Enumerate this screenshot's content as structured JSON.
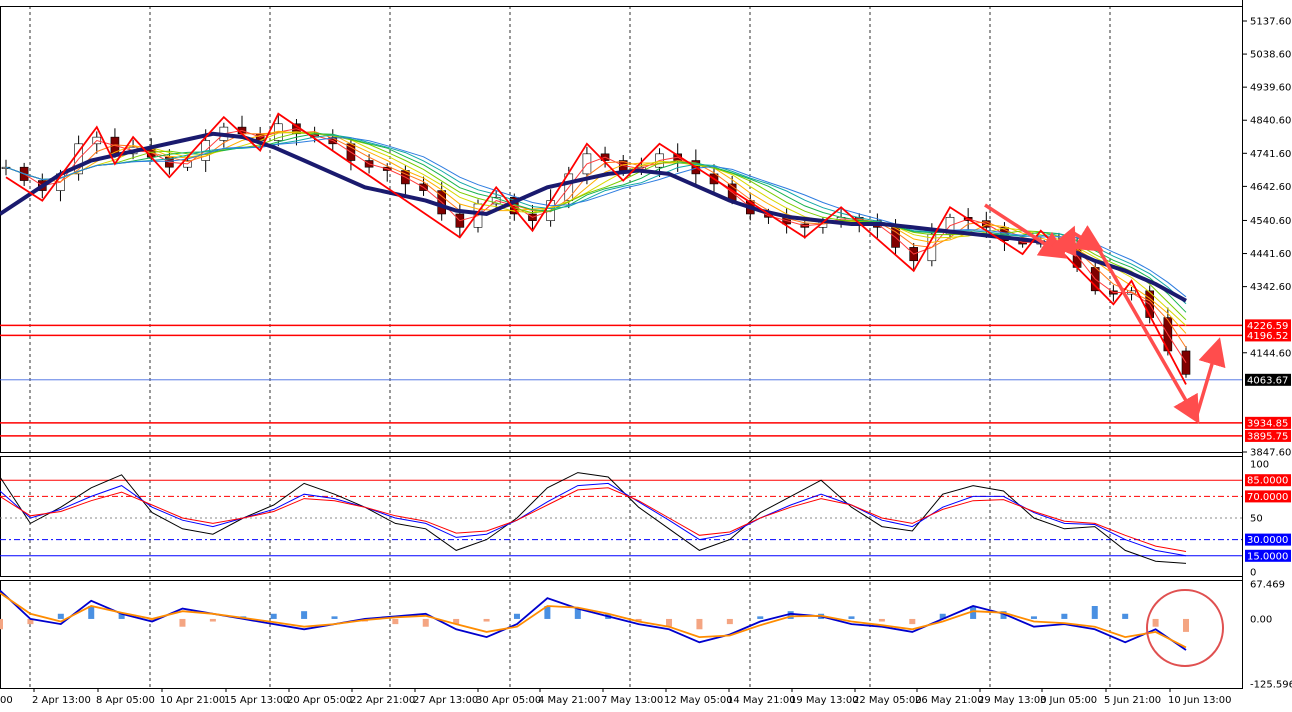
{
  "chart_data": [
    {
      "type": "candlestick",
      "name_hint": "price",
      "price_axis_ticks": [
        "5137.60",
        "5038.60",
        "4939.60",
        "4840.60",
        "4741.60",
        "4642.60",
        "4540.60",
        "4441.60",
        "4342.60",
        "4144.60",
        "3847.60"
      ],
      "ylim": [
        3847.6,
        5137.6
      ],
      "x_tick_labels": [
        "2 Apr 13:00",
        "8 Apr 05:00",
        "10 Apr 21:00",
        "15 Apr 13:00",
        "20 Apr 05:00",
        "22 Apr 21:00",
        "27 Apr 13:00",
        "30 Apr 05:00",
        "4 May 21:00",
        "7 May 13:00",
        "12 May 05:00",
        "14 May 21:00",
        "19 May 13:00",
        "22 May 05:00",
        "26 May 21:00",
        "29 May 13:00",
        "3 Jun 05:00",
        "5 Jun 21:00",
        "10 Jun 13:00"
      ],
      "x_tick_leading_fragment": "00",
      "price_series": [
        4700,
        4660,
        4630,
        4680,
        4770,
        4790,
        4740,
        4760,
        4730,
        4700,
        4720,
        4780,
        4820,
        4800,
        4780,
        4830,
        4800,
        4790,
        4770,
        4720,
        4700,
        4690,
        4650,
        4630,
        4560,
        4520,
        4590,
        4610,
        4560,
        4540,
        4600,
        4680,
        4740,
        4720,
        4690,
        4700,
        4740,
        4720,
        4680,
        4650,
        4600,
        4560,
        4550,
        4530,
        4520,
        4540,
        4550,
        4540,
        4520,
        4460,
        4420,
        4500,
        4550,
        4540,
        4520,
        4480,
        4470,
        4480,
        4470,
        4400,
        4330,
        4320,
        4330,
        4250,
        4150,
        4080
      ],
      "slow_ma": [
        4560,
        4620,
        4680,
        4720,
        4740,
        4760,
        4780,
        4800,
        4790,
        4760,
        4720,
        4680,
        4640,
        4620,
        4600,
        4570,
        4560,
        4600,
        4640,
        4660,
        4680,
        4690,
        4680,
        4640,
        4600,
        4570,
        4550,
        4540,
        4530,
        4530,
        4520,
        4510,
        4500,
        4490,
        4480,
        4460,
        4420,
        4390,
        4350,
        4300
      ],
      "price_levels": [
        {
          "label": "4226.59",
          "value": 4226.59,
          "color": "#ff0000"
        },
        {
          "label": "4196.52",
          "value": 4196.52,
          "color": "#ff0000"
        },
        {
          "label": "3934.85",
          "value": 3934.85,
          "color": "#ff0000"
        },
        {
          "label": "3895.75",
          "value": 3895.75,
          "color": "#ff0000"
        }
      ],
      "current_price": {
        "label": "4063.67",
        "value": 4063.67,
        "color": "#000000",
        "line_color": "#4169e1"
      },
      "colors": {
        "bull_candle": "#008000",
        "bear_candle": "#800000",
        "zigzag": "#ff0000",
        "slow_ma": "#1a1a6e",
        "arrows": "#ff4d4d",
        "grid_vertical": "#000000"
      }
    },
    {
      "type": "line",
      "name_hint": "stochastic",
      "axis_ticks": [
        "100",
        "50",
        "0"
      ],
      "ylim": [
        0,
        100
      ],
      "levels": [
        {
          "label": "85.0000",
          "value": 85,
          "color": "#ff0000"
        },
        {
          "label": "70.0000",
          "value": 70,
          "color": "#ff0000"
        },
        {
          "label": "30.0000",
          "value": 30,
          "color": "#0000ff"
        },
        {
          "label": "15.0000",
          "value": 15,
          "color": "#0000ff"
        }
      ],
      "series": [
        {
          "values": [
            88,
            45,
            60,
            78,
            90,
            55,
            40,
            35,
            50,
            62,
            82,
            72,
            60,
            45,
            40,
            20,
            30,
            50,
            78,
            92,
            88,
            60,
            40,
            20,
            30,
            55,
            70,
            85,
            60,
            42,
            38,
            72,
            80,
            75,
            50,
            40,
            42,
            20,
            10,
            8
          ]
        },
        {
          "values": [
            75,
            50,
            58,
            70,
            80,
            60,
            48,
            42,
            50,
            58,
            72,
            68,
            60,
            50,
            45,
            32,
            35,
            48,
            65,
            80,
            82,
            65,
            48,
            30,
            35,
            50,
            62,
            72,
            62,
            48,
            42,
            60,
            70,
            70,
            55,
            45,
            44,
            30,
            20,
            15
          ],
          "color": "#0000ff"
        },
        {
          "values": [
            70,
            52,
            56,
            66,
            74,
            62,
            50,
            45,
            50,
            56,
            68,
            66,
            60,
            52,
            47,
            36,
            38,
            48,
            62,
            76,
            78,
            66,
            50,
            34,
            37,
            50,
            60,
            68,
            62,
            50,
            45,
            58,
            66,
            67,
            56,
            47,
            45,
            34,
            24,
            19
          ],
          "color": "#ff0000"
        }
      ]
    },
    {
      "type": "bar",
      "name_hint": "macd",
      "axis_ticks": [
        "67.469",
        "0.00",
        "-125.5969"
      ],
      "ylim": [
        -125.5969,
        67.469
      ],
      "histogram": [
        -20,
        -10,
        10,
        25,
        10,
        -5,
        -15,
        -5,
        5,
        10,
        15,
        5,
        -5,
        -10,
        -15,
        -10,
        -5,
        10,
        25,
        20,
        10,
        -5,
        -15,
        -20,
        -10,
        5,
        15,
        10,
        5,
        -5,
        -10,
        10,
        25,
        15,
        5,
        10,
        25,
        10,
        -15,
        -25
      ],
      "macd_line": [
        55,
        0,
        -10,
        35,
        10,
        -5,
        20,
        10,
        0,
        -10,
        -20,
        -10,
        0,
        5,
        10,
        -20,
        -35,
        -10,
        40,
        20,
        5,
        -10,
        -20,
        -45,
        -30,
        -5,
        10,
        5,
        -10,
        -15,
        -25,
        0,
        25,
        10,
        -15,
        -10,
        -20,
        -45,
        -20,
        -60
      ],
      "signal_line": [
        50,
        10,
        -5,
        25,
        12,
        0,
        15,
        10,
        2,
        -6,
        -15,
        -10,
        -2,
        3,
        6,
        -10,
        -25,
        -15,
        25,
        22,
        10,
        -5,
        -15,
        -35,
        -32,
        -12,
        5,
        6,
        -5,
        -12,
        -20,
        -5,
        15,
        12,
        -5,
        -8,
        -15,
        -35,
        -25,
        -55
      ],
      "colors": {
        "hist_pos": "#4a90e2",
        "hist_neg": "#f4a582",
        "macd": "#0000cd",
        "signal": "#ff8c00",
        "highlight_circle": "#e05050"
      }
    }
  ]
}
